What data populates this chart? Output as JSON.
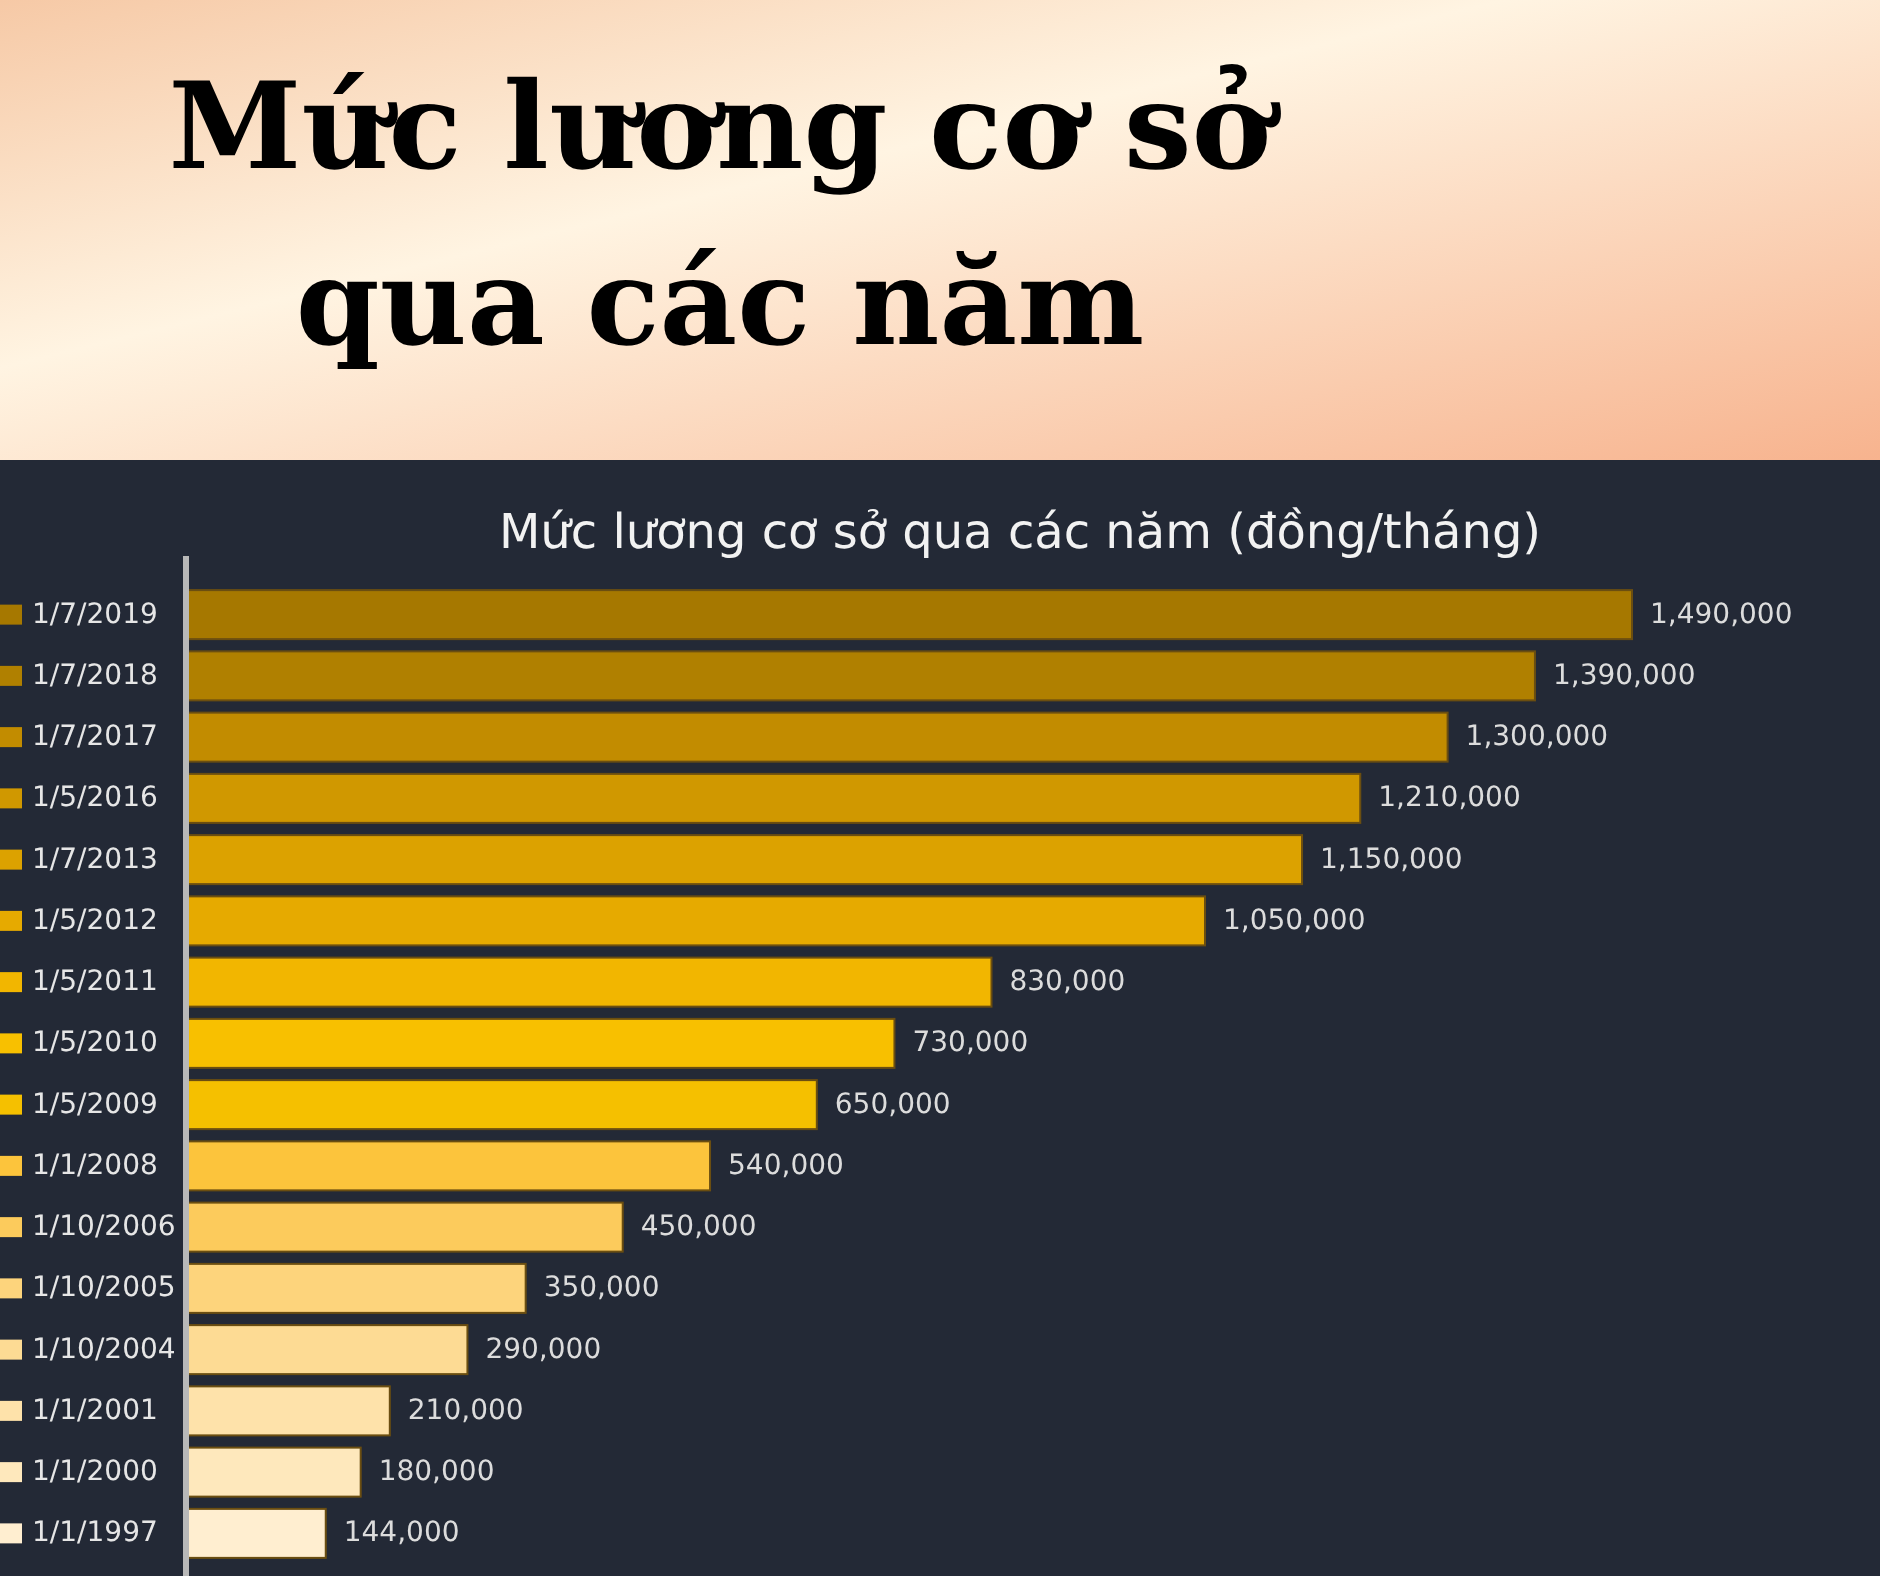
{
  "chart_data": {
    "type": "bar",
    "orientation": "horizontal",
    "title": "Mức lương cơ sở qua các năm",
    "subtitle": "Mức lương cơ sở qua các năm (đồng/tháng)",
    "categories": [
      "1/7/2019",
      "1/7/2018",
      "1/7/2017",
      "1/5/2016",
      "1/7/2013",
      "1/5/2012",
      "1/5/2011",
      "1/5/2010",
      "1/5/2009",
      "1/1/2008",
      "1/10/2006",
      "1/10/2005",
      "1/10/2004",
      "1/1/2001",
      "1/1/2000",
      "1/1/1997"
    ],
    "values": [
      1490000,
      1390000,
      1300000,
      1210000,
      1150000,
      1050000,
      830000,
      730000,
      650000,
      540000,
      450000,
      350000,
      290000,
      210000,
      180000,
      144000
    ],
    "value_labels": [
      "1,490,000",
      "1,390,000",
      "1,300,000",
      "1,210,000",
      "1,150,000",
      "1,050,000",
      "830,000",
      "730,000",
      "650,000",
      "540,000",
      "450,000",
      "350,000",
      "290,000",
      "210,000",
      "180,000",
      "144,000"
    ],
    "colors": [
      "#a67800",
      "#b08000",
      "#c28c00",
      "#d09800",
      "#dca200",
      "#e6aa00",
      "#f2b600",
      "#f8c000",
      "#f5c000",
      "#fcc43c",
      "#fccb5c",
      "#fdd47c",
      "#fddb94",
      "#fee2aa",
      "#fee8bc",
      "#ffeed0"
    ],
    "tick_labels": "y"
  }
}
